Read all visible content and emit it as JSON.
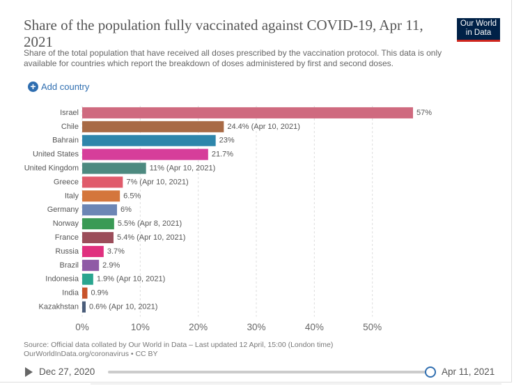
{
  "chart_data": {
    "type": "hbar",
    "title": "Share of the population fully vaccinated against COVID-19, Apr 11, 2021",
    "subtitle": "Share of the total population that have received all doses prescribed by the vaccination protocol. This data is only available for countries which report the breakdown of doses administered by first and second doses.",
    "categories": [
      "Israel",
      "Chile",
      "Bahrain",
      "United States",
      "United Kingdom",
      "Greece",
      "Italy",
      "Germany",
      "Norway",
      "France",
      "Russia",
      "Brazil",
      "Indonesia",
      "India",
      "Kazakhstan"
    ],
    "values": [
      57,
      24.4,
      23,
      21.7,
      11,
      7,
      6.5,
      6,
      5.5,
      5.4,
      3.7,
      2.9,
      1.9,
      0.9,
      0.6
    ],
    "value_labels": [
      "57%",
      "24.4% (Apr 10, 2021)",
      "23%",
      "21.7%",
      "11% (Apr 10, 2021)",
      "7% (Apr 10, 2021)",
      "6.5%",
      "6%",
      "5.5% (Apr 8, 2021)",
      "5.4% (Apr 10, 2021)",
      "3.7%",
      "2.9%",
      "1.9% (Apr 10, 2021)",
      "0.9%",
      "0.6% (Apr 10, 2021)"
    ],
    "colors": [
      "#cf6a7f",
      "#a86a45",
      "#2e86ab",
      "#d63e9a",
      "#4d8a80",
      "#e05b6b",
      "#d4763c",
      "#6c86b5",
      "#3a9a55",
      "#9b4d5a",
      "#e0307f",
      "#8f5ba6",
      "#2aa58f",
      "#c8522a",
      "#4a5d7a"
    ],
    "xlim": [
      0,
      57
    ],
    "xticks": [
      {
        "value": 0,
        "label": "0%"
      },
      {
        "value": 10,
        "label": "10%"
      },
      {
        "value": 20,
        "label": "20%"
      },
      {
        "value": 30,
        "label": "30%"
      },
      {
        "value": 40,
        "label": "40%"
      },
      {
        "value": 50,
        "label": "50%"
      }
    ],
    "grid": true,
    "source": [
      "Source: Official data collated by Our World in Data – Last updated 12 April, 15:00 (London time)",
      "OurWorldInData.org/coronavirus • CC BY"
    ]
  },
  "logo": [
    "Our World",
    "in Data"
  ],
  "add_country": "Add country",
  "timeline": {
    "start": "Dec 27, 2020",
    "end": "Apr 11, 2021"
  }
}
